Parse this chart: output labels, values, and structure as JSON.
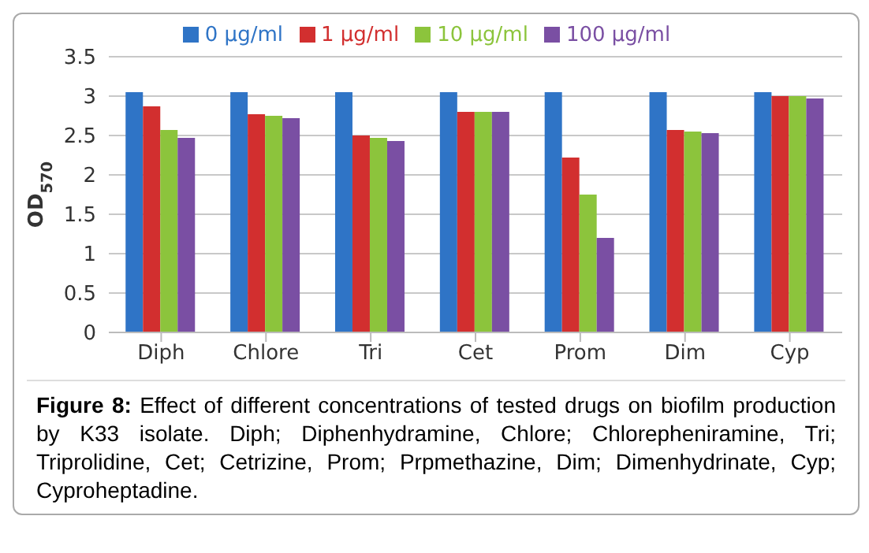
{
  "chart_data": {
    "type": "bar",
    "categories": [
      "Diph",
      "Chlore",
      "Tri",
      "Cet",
      "Prom",
      "Dim",
      "Cyp"
    ],
    "series": [
      {
        "name": "0 µg/ml",
        "color": "#2f74c6",
        "values": [
          3.05,
          3.05,
          3.05,
          3.05,
          3.05,
          3.05,
          3.05
        ]
      },
      {
        "name": "1 µg/ml",
        "color": "#d22f2f",
        "values": [
          2.87,
          2.77,
          2.5,
          2.8,
          2.22,
          2.57,
          3.0
        ]
      },
      {
        "name": "10 µg/ml",
        "color": "#8cc43c",
        "values": [
          2.57,
          2.75,
          2.47,
          2.8,
          1.75,
          2.55,
          3.0
        ]
      },
      {
        "name": "100 µg/ml",
        "color": "#7a4fa3",
        "values": [
          2.47,
          2.72,
          2.43,
          2.8,
          1.2,
          2.53,
          2.97
        ]
      }
    ],
    "ylabel": "OD$_{570}$",
    "ylim": [
      0,
      3.5
    ],
    "yticks": [
      0,
      0.5,
      1,
      1.5,
      2,
      2.5,
      3,
      3.5
    ],
    "grid": "y",
    "legend": "top",
    "annotations": [
      "Figure 8: Effect of different concentrations of tested drugs on biofilm production by K33 isolate. Diph; Diphenhydramine, Chlore; Chlorepheniramine, Tri; Triprolidine, Cet; Cetrizine, Prom; Prpmethazine, Dim; Dimenhydrinate, Cyp; Cyproheptadine."
    ]
  }
}
